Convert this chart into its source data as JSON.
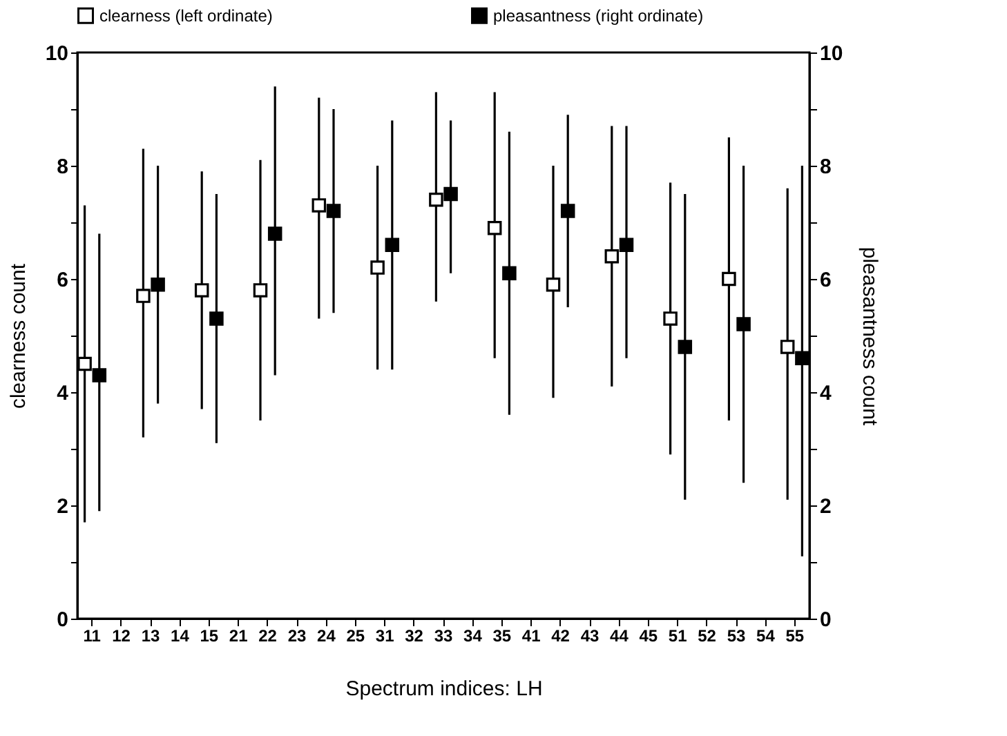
{
  "chart_data": {
    "type": "scatter",
    "xlabel": "Spectrum indices: LH",
    "ylabel": "clearness count",
    "y2label": "pleasantness count",
    "categories": [
      "11",
      "12",
      "13",
      "14",
      "15",
      "21",
      "22",
      "23",
      "24",
      "25",
      "31",
      "32",
      "33",
      "34",
      "35",
      "41",
      "42",
      "43",
      "44",
      "45",
      "51",
      "52",
      "53",
      "54",
      "55"
    ],
    "ylim": [
      0,
      10
    ],
    "y2lim": [
      0,
      10
    ],
    "yticks": [
      0,
      {
        "value": 1,
        "label": null
      },
      2,
      {
        "value": 3,
        "label": null
      },
      4,
      {
        "value": 5,
        "label": null
      },
      6,
      {
        "value": 7,
        "label": null
      },
      8,
      {
        "value": 9,
        "label": null
      },
      10
    ],
    "y2ticks": [
      0,
      {
        "value": 1,
        "label": null
      },
      2,
      {
        "value": 3,
        "label": null
      },
      4,
      {
        "value": 5,
        "label": null
      },
      6,
      {
        "value": 7,
        "label": null
      },
      8,
      {
        "value": 9,
        "label": null
      },
      10
    ],
    "marker": "square",
    "grid": false,
    "legend": "top",
    "series": [
      {
        "name": "clearness (left ordinate)",
        "color": "#ffffff",
        "values": [
          4.5,
          null,
          5.7,
          null,
          5.8,
          null,
          5.8,
          null,
          7.3,
          null,
          6.2,
          null,
          7.4,
          null,
          6.9,
          null,
          5.9,
          null,
          6.4,
          null,
          5.3,
          null,
          6.0,
          null,
          4.8
        ],
        "errors": [
          [
            1.7,
            7.3
          ],
          null,
          [
            3.2,
            8.3
          ],
          null,
          [
            3.7,
            7.9
          ],
          null,
          [
            3.5,
            8.1
          ],
          null,
          [
            5.3,
            9.2
          ],
          null,
          [
            4.4,
            8.0
          ],
          null,
          [
            5.6,
            9.3
          ],
          null,
          [
            4.6,
            9.3
          ],
          null,
          [
            3.9,
            8.0
          ],
          null,
          [
            4.1,
            8.7
          ],
          null,
          [
            2.9,
            7.7
          ],
          null,
          [
            3.5,
            8.5
          ],
          null,
          [
            2.1,
            7.6
          ]
        ]
      },
      {
        "name": "pleasantness (right ordinate)",
        "color": "#000000",
        "axis": "y2",
        "values": [
          4.3,
          null,
          5.9,
          null,
          5.3,
          null,
          6.8,
          null,
          7.2,
          null,
          6.6,
          null,
          7.5,
          null,
          6.1,
          null,
          7.2,
          null,
          6.6,
          null,
          4.8,
          null,
          5.2,
          null,
          4.6
        ],
        "errors": [
          [
            1.9,
            6.8
          ],
          null,
          [
            3.8,
            8.0
          ],
          null,
          [
            3.1,
            7.5
          ],
          null,
          [
            4.3,
            9.4
          ],
          null,
          [
            5.4,
            9.0
          ],
          null,
          [
            4.4,
            8.8
          ],
          null,
          [
            6.1,
            8.8
          ],
          null,
          [
            3.6,
            8.6
          ],
          null,
          [
            5.5,
            8.9
          ],
          null,
          [
            4.6,
            8.7
          ],
          null,
          [
            2.1,
            7.5
          ],
          null,
          [
            2.4,
            8.0
          ],
          null,
          [
            1.1,
            8.0
          ]
        ]
      }
    ]
  }
}
